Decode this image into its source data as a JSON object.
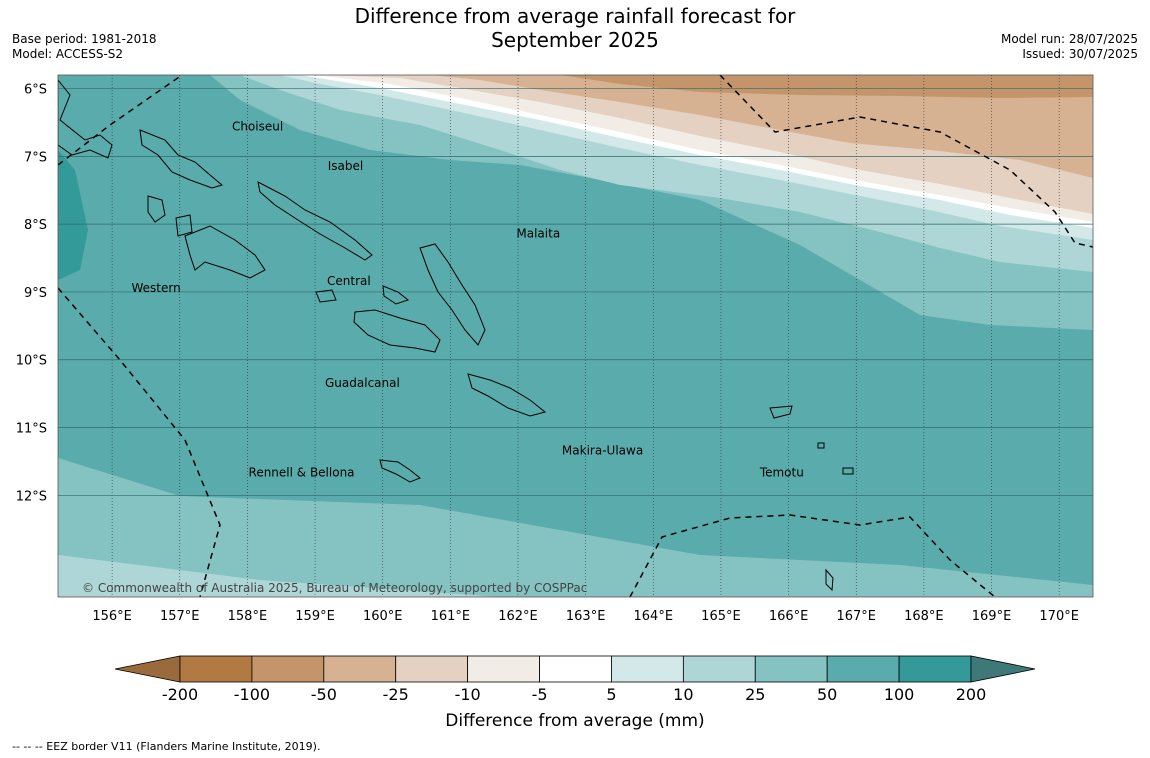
{
  "title_line1": "Difference from average rainfall forecast for",
  "title_line2": "September 2025",
  "meta_left": {
    "base_period": "Base period: 1981-2018",
    "model": "Model: ACCESS-S2"
  },
  "meta_right": {
    "model_run": "Model run: 28/07/2025",
    "issued": "Issued: 30/07/2025"
  },
  "copyright": "© Commonwealth of Australia 2025, Bureau of Meteorology, supported by COSPPac",
  "map": {
    "lon_range": [
      155.2,
      170.5
    ],
    "lat_range": [
      -13.5,
      -5.8
    ],
    "lat_ticks": [
      -6,
      -7,
      -8,
      -9,
      -10,
      -11,
      -12
    ],
    "lat_tick_labels": [
      "6°S",
      "7°S",
      "8°S",
      "9°S",
      "10°S",
      "11°S",
      "12°S"
    ],
    "lon_ticks": [
      156,
      157,
      158,
      159,
      160,
      161,
      162,
      163,
      164,
      165,
      166,
      167,
      168,
      169,
      170
    ],
    "lon_tick_labels": [
      "156°E",
      "157°E",
      "158°E",
      "159°E",
      "160°E",
      "161°E",
      "162°E",
      "163°E",
      "164°E",
      "165°E",
      "166°E",
      "167°E",
      "168°E",
      "169°E",
      "170°E"
    ],
    "gridlines": true
  },
  "regions": [
    {
      "name": "Choiseul",
      "lon": 158.15,
      "lat": -6.62
    },
    {
      "name": "Isabel",
      "lon": 159.45,
      "lat": -7.2
    },
    {
      "name": "Malaita",
      "lon": 162.3,
      "lat": -8.2
    },
    {
      "name": "Western",
      "lon": 156.65,
      "lat": -9.0
    },
    {
      "name": "Central",
      "lon": 159.5,
      "lat": -8.9
    },
    {
      "name": "Guadalcanal",
      "lon": 159.7,
      "lat": -10.4
    },
    {
      "name": "Makira-Ulawa",
      "lon": 163.25,
      "lat": -11.4
    },
    {
      "name": "Rennell & Bellona",
      "lon": 158.8,
      "lat": -11.72
    },
    {
      "name": "Temotu",
      "lon": 165.9,
      "lat": -11.72
    }
  ],
  "legend": {
    "title": "Difference from average (mm)",
    "tick_labels": [
      "-200",
      "-100",
      "-50",
      "-25",
      "-10",
      "-5",
      "5",
      "10",
      "25",
      "50",
      "100",
      "200"
    ],
    "colors": [
      "#9a6a3c",
      "#b07a42",
      "#c4956b",
      "#d6b293",
      "#e4d1c1",
      "#f2ece7",
      "#ffffff",
      "#d3e8e8",
      "#aed6d6",
      "#85c2c2",
      "#5aabab",
      "#339999",
      "#3f7878"
    ]
  },
  "footer": "--  --  -- EEZ border V11 (Flanders Marine Institute, 2019)."
}
